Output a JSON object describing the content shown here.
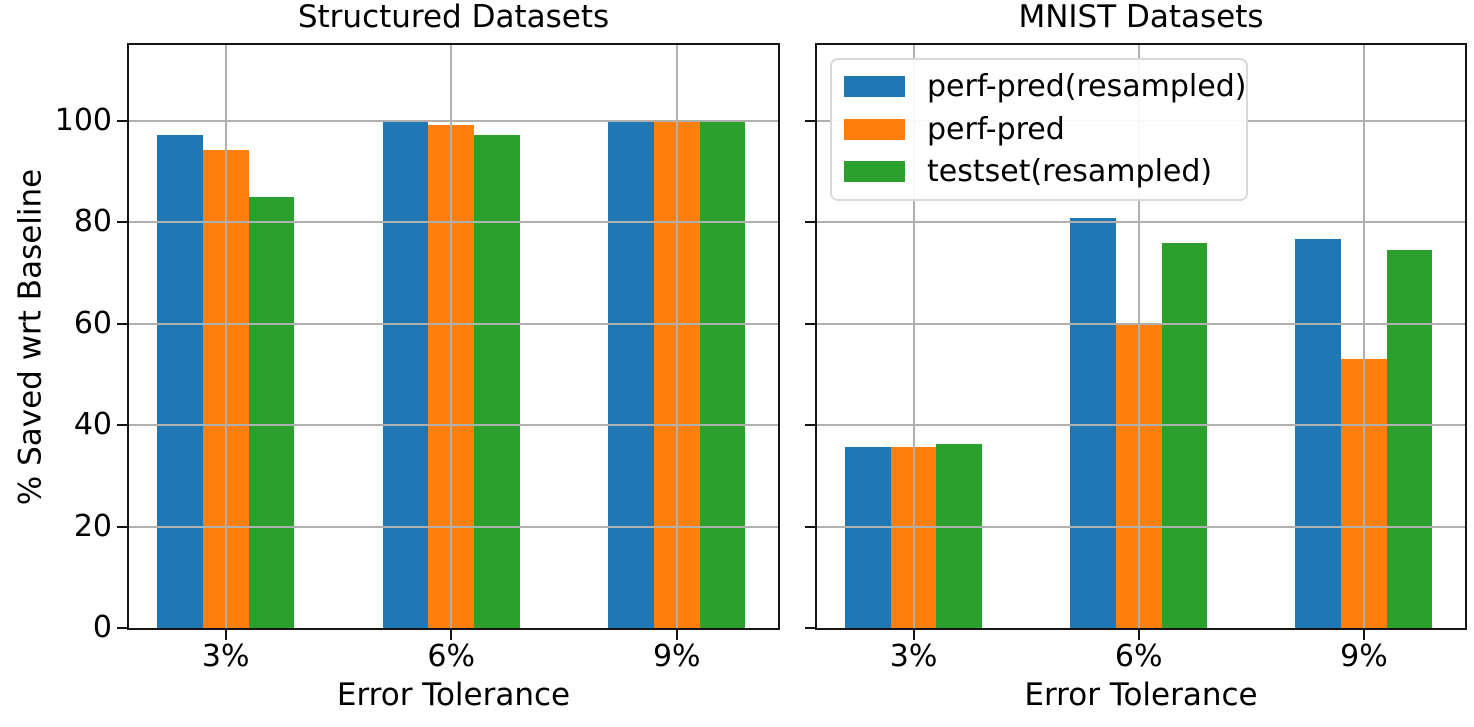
{
  "colors": {
    "blue": "#1f77b4",
    "orange": "#ff7f0e",
    "green": "#2ca02c",
    "grid": "#b0b0b0",
    "spine": "#141414",
    "text": "#000000",
    "legend_border": "#d9d9d9"
  },
  "chart_data": [
    {
      "id": "structured",
      "type": "bar",
      "title": "Structured Datasets",
      "xlabel": "Error Tolerance",
      "ylabel": "% Saved wrt Baseline",
      "categories": [
        "3%",
        "6%",
        "9%"
      ],
      "series": [
        {
          "name": "perf-pred(resampled)",
          "color": "#1f77b4",
          "values": [
            97.3,
            99.8,
            99.8
          ]
        },
        {
          "name": "perf-pred",
          "color": "#ff7f0e",
          "values": [
            94.2,
            99.3,
            99.8
          ]
        },
        {
          "name": "testset(resampled)",
          "color": "#2ca02c",
          "values": [
            85.0,
            97.2,
            99.8
          ]
        }
      ],
      "ylim": [
        0,
        115
      ],
      "yticks": [
        0,
        20,
        40,
        60,
        80,
        100
      ],
      "grid": true,
      "legend": false,
      "show_ytick_labels": true
    },
    {
      "id": "mnist",
      "type": "bar",
      "title": "MNIST Datasets",
      "xlabel": "Error Tolerance",
      "ylabel": "",
      "categories": [
        "3%",
        "6%",
        "9%"
      ],
      "series": [
        {
          "name": "perf-pred(resampled)",
          "color": "#1f77b4",
          "values": [
            35.7,
            80.9,
            76.8
          ]
        },
        {
          "name": "perf-pred",
          "color": "#ff7f0e",
          "values": [
            35.7,
            59.9,
            53.0
          ]
        },
        {
          "name": "testset(resampled)",
          "color": "#2ca02c",
          "values": [
            36.3,
            76.0,
            74.6
          ]
        }
      ],
      "ylim": [
        0,
        115
      ],
      "yticks": [
        0,
        20,
        40,
        60,
        80,
        100
      ],
      "grid": true,
      "legend": {
        "position": "upper left"
      },
      "show_ytick_labels": false
    }
  ]
}
